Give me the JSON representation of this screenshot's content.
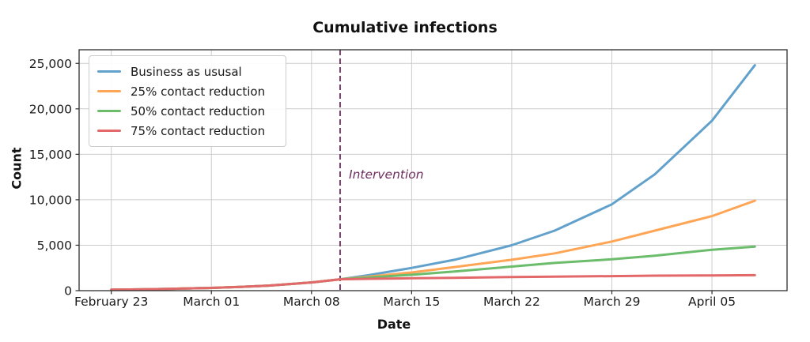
{
  "chart_data": {
    "type": "line",
    "title": "Cumulative infections",
    "xlabel": "Date",
    "ylabel": "Count",
    "grid": true,
    "legend_position": "upper-left",
    "x_tick_labels": [
      "February 23",
      "March 01",
      "March 08",
      "March 15",
      "March 22",
      "March 29",
      "April 05"
    ],
    "x_tick_days": [
      0,
      7,
      14,
      21,
      28,
      35,
      42
    ],
    "y_ticks": [
      0,
      5000,
      10000,
      15000,
      20000,
      25000
    ],
    "y_tick_labels": [
      "0",
      "5,000",
      "10,000",
      "15,000",
      "20,000",
      "25,000"
    ],
    "xlim_days": [
      -2.25,
      47.25
    ],
    "ylim": [
      0,
      26500
    ],
    "x_days": [
      0,
      2,
      4,
      7,
      9,
      11,
      14,
      16,
      18,
      21,
      24,
      28,
      31,
      35,
      38,
      42,
      45
    ],
    "series": [
      {
        "name": "Business as ususal",
        "color": "#62a1cb",
        "values": [
          100,
          140,
          190,
          300,
          410,
          560,
          900,
          1250,
          1700,
          2500,
          3400,
          5000,
          6600,
          9500,
          12800,
          18700,
          24800
        ]
      },
      {
        "name": "25% contact reduction",
        "color": "#ffa556",
        "values": [
          100,
          140,
          190,
          300,
          410,
          560,
          900,
          1250,
          1550,
          2000,
          2600,
          3400,
          4100,
          5400,
          6600,
          8200,
          9900
        ]
      },
      {
        "name": "50% contact reduction",
        "color": "#6bbc6b",
        "values": [
          100,
          140,
          190,
          300,
          410,
          560,
          900,
          1250,
          1450,
          1750,
          2100,
          2650,
          3050,
          3450,
          3850,
          4500,
          4850
        ]
      },
      {
        "name": "75% contact reduction",
        "color": "#e26869",
        "values": [
          100,
          140,
          190,
          300,
          410,
          560,
          900,
          1250,
          1300,
          1360,
          1420,
          1500,
          1550,
          1600,
          1650,
          1680,
          1700
        ]
      }
    ],
    "annotation": {
      "label": "Intervention",
      "day": 16,
      "color": "#6e2c5e"
    },
    "colors": {
      "grid": "#cccccc",
      "spine": "#2e2e2e",
      "tick_text": "#1a1a1a"
    }
  }
}
